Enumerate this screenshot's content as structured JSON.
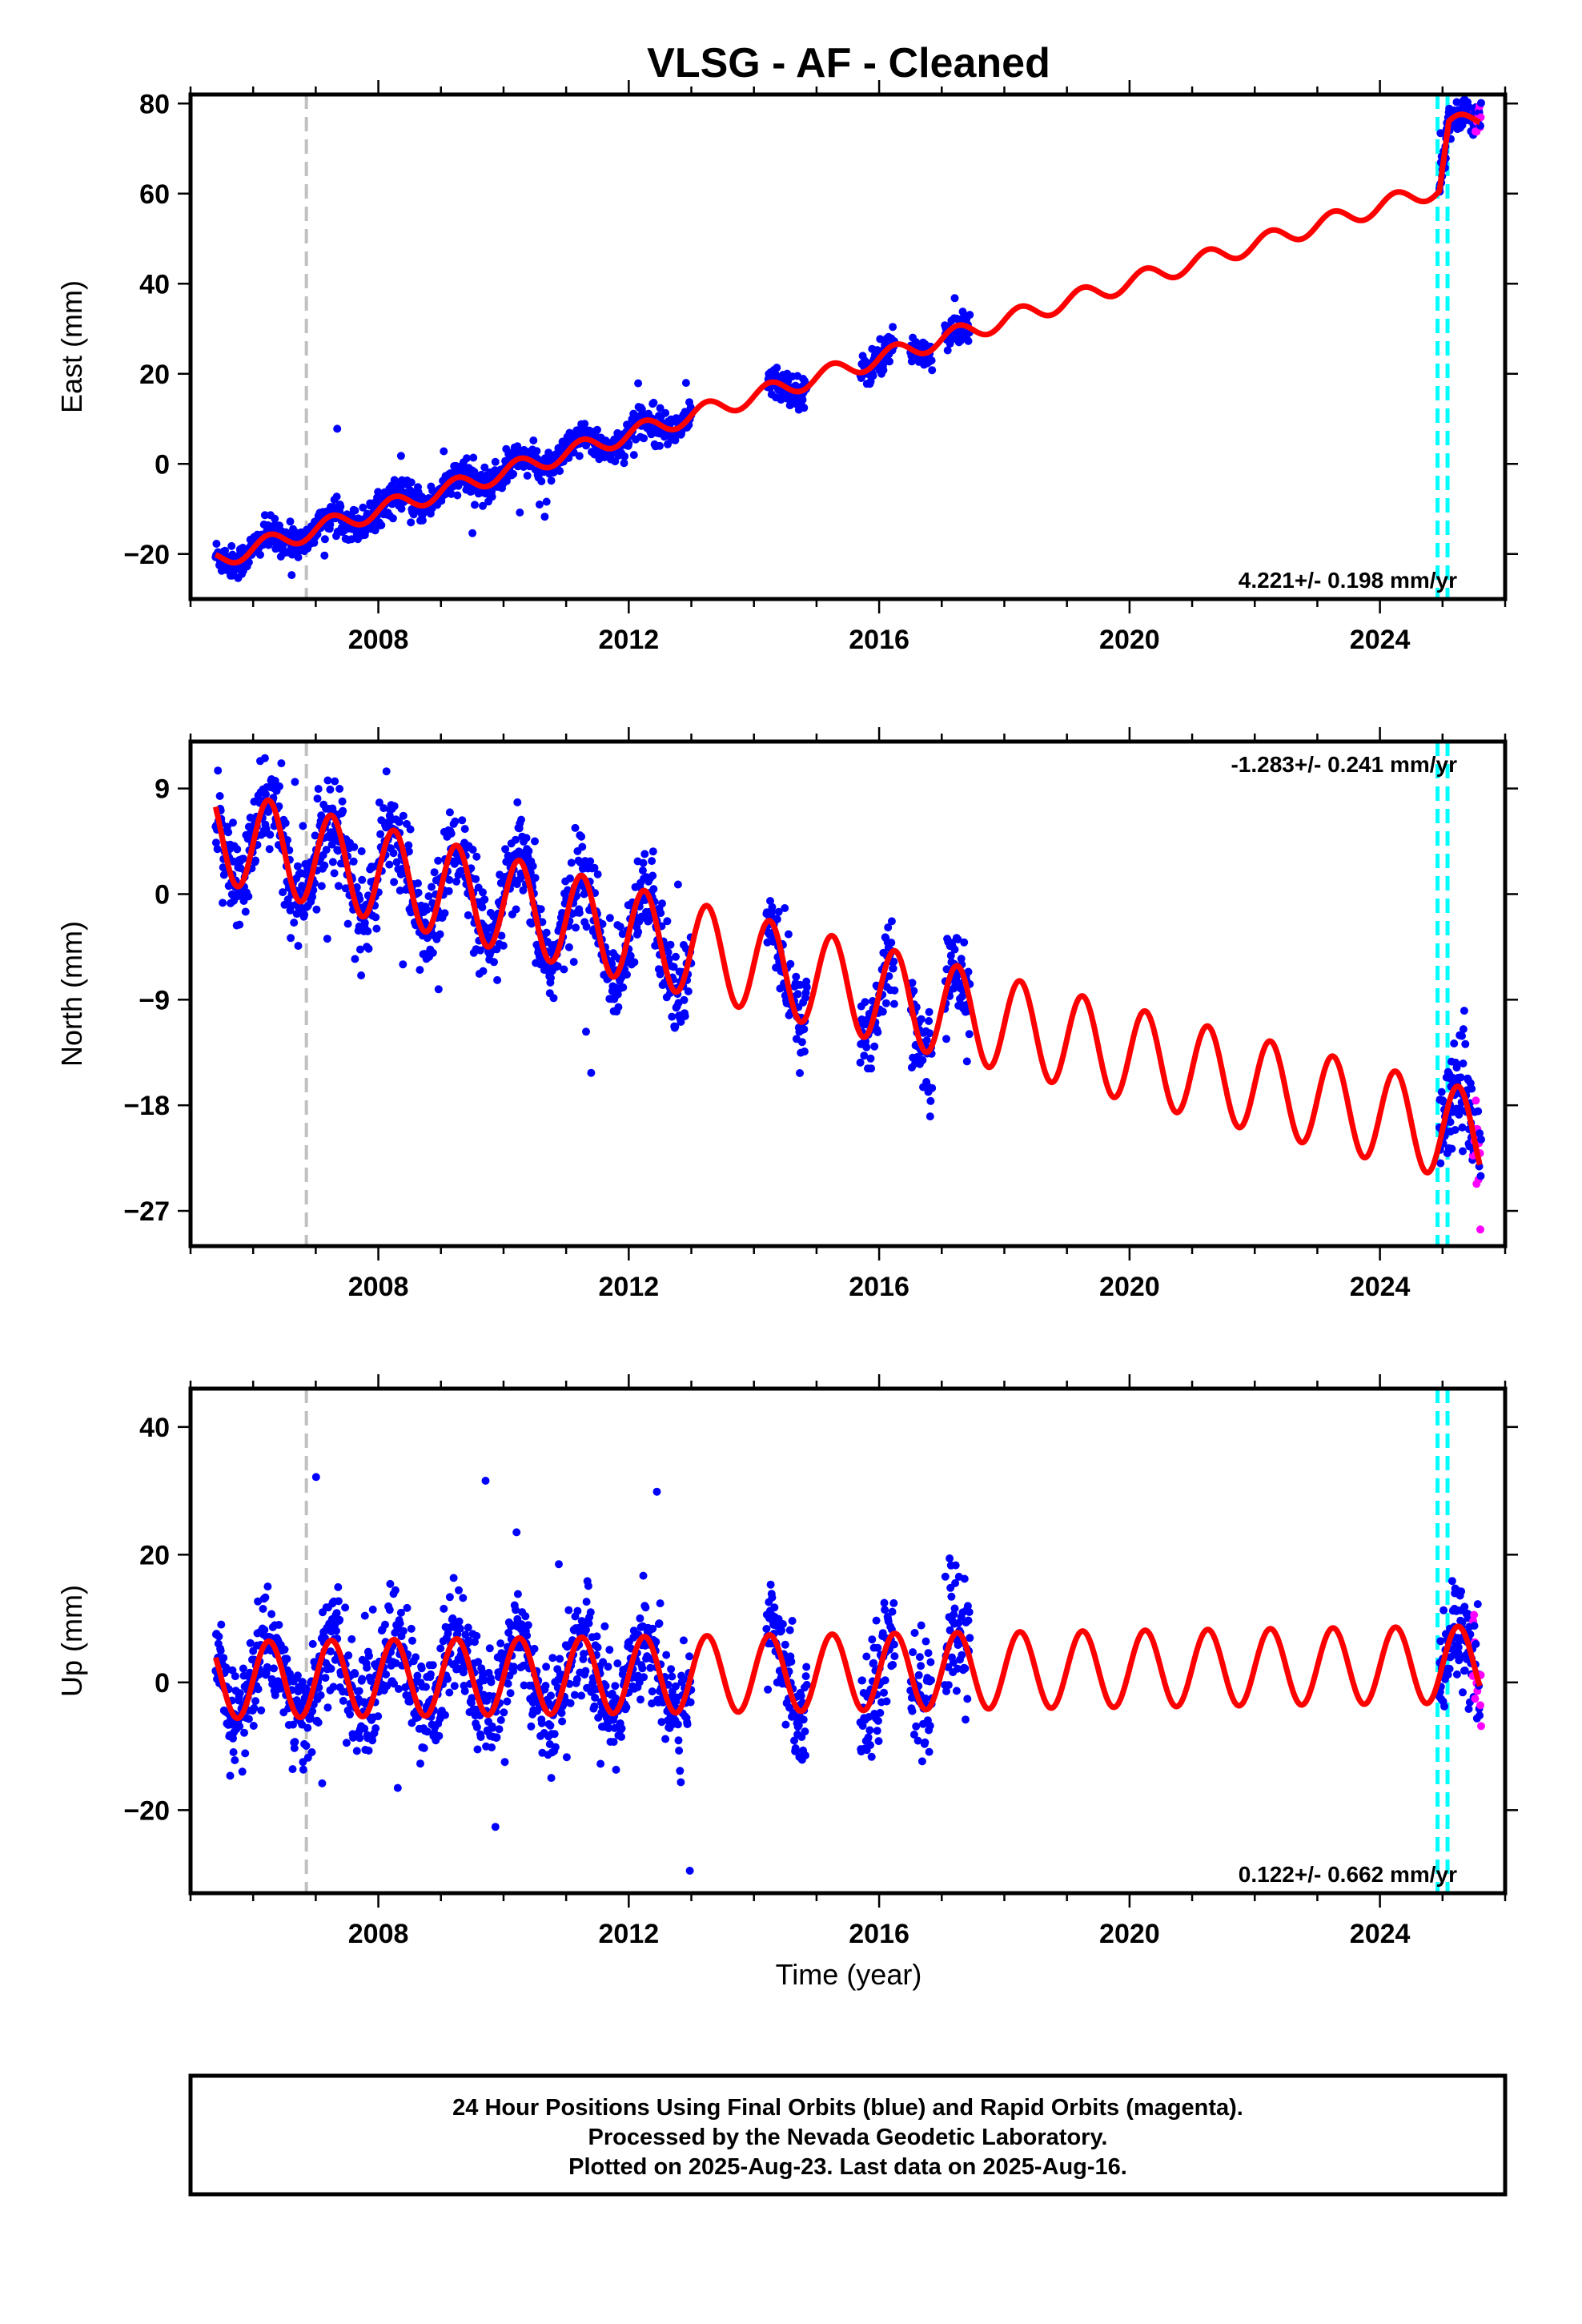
{
  "chart_data": {
    "title": "VLSG  - AF - Cleaned",
    "type": "scatter",
    "x_label": "Time (year)",
    "x_range": [
      2005.0,
      2026.0
    ],
    "x_ticks": [
      2008,
      2012,
      2016,
      2020,
      2024
    ],
    "colors": {
      "final_orbits": "#0000ff",
      "rapid_orbits": "#ff00ff",
      "model_fit": "#ff0000",
      "equipment_change": "#c0c0c0",
      "offset_markers": "#00ffff"
    },
    "reference_lines": {
      "gray_dashed": [
        2006.85
      ],
      "cyan_dashed": [
        2024.92,
        2025.08
      ]
    },
    "panels": [
      {
        "key": "east",
        "ylabel": "East (mm)",
        "ylim": [
          -30,
          82
        ],
        "yticks": [
          -20,
          0,
          20,
          40,
          60,
          80
        ],
        "yticklabels": [
          "−20",
          "0",
          "20",
          "40",
          "60",
          "80"
        ],
        "rate": "4.221+/- 0.198 mm/yr",
        "rate_position": "bottom-right",
        "fit": {
          "start": 2005.4,
          "end": 2025.6,
          "y_at_2005": -23.0,
          "slope": 4.221,
          "annual_amp": 2.0,
          "phase": 0.0,
          "offset_2025": 13.0
        }
      },
      {
        "key": "north",
        "ylabel": "North (mm)",
        "ylim": [
          -30,
          13
        ],
        "yticks": [
          -27,
          -18,
          -9,
          0,
          9
        ],
        "yticklabels": [
          "−27",
          "−18",
          "−9",
          "0",
          "9"
        ],
        "rate": "-1.283+/- 0.241 mm/yr",
        "rate_position": "top-right",
        "fit": {
          "start": 2005.4,
          "end": 2025.6,
          "y_at_2005": 5.6,
          "slope": -1.283,
          "annual_amp": 4.0,
          "phase": 0.0,
          "offset_2025": 0
        }
      },
      {
        "key": "up",
        "ylabel": "Up (mm)",
        "ylim": [
          -33,
          46
        ],
        "yticks": [
          -20,
          0,
          20,
          40
        ],
        "yticklabels": [
          "−20",
          "0",
          "20",
          "40"
        ],
        "rate": "0.122+/- 0.662 mm/yr",
        "rate_position": "bottom-right",
        "fit": {
          "start": 2005.4,
          "end": 2025.6,
          "y_at_2005": 0.3,
          "slope": 0.122,
          "annual_amp": 6.0,
          "phase": 0.0,
          "offset_2025": 0
        }
      }
    ],
    "data_segments": [
      [
        2005.4,
        2013.0
      ],
      [
        2014.2,
        2014.85
      ],
      [
        2015.7,
        2016.25
      ],
      [
        2016.5,
        2016.85
      ],
      [
        2017.05,
        2017.45
      ],
      [
        2024.95,
        2025.62
      ]
    ]
  },
  "footer": {
    "line1": "24 Hour Positions Using Final Orbits (blue) and Rapid Orbits (magenta).",
    "line2": "Processed by the Nevada Geodetic Laboratory.",
    "line3": "Plotted on 2025-Aug-23. Last data on 2025-Aug-16."
  }
}
